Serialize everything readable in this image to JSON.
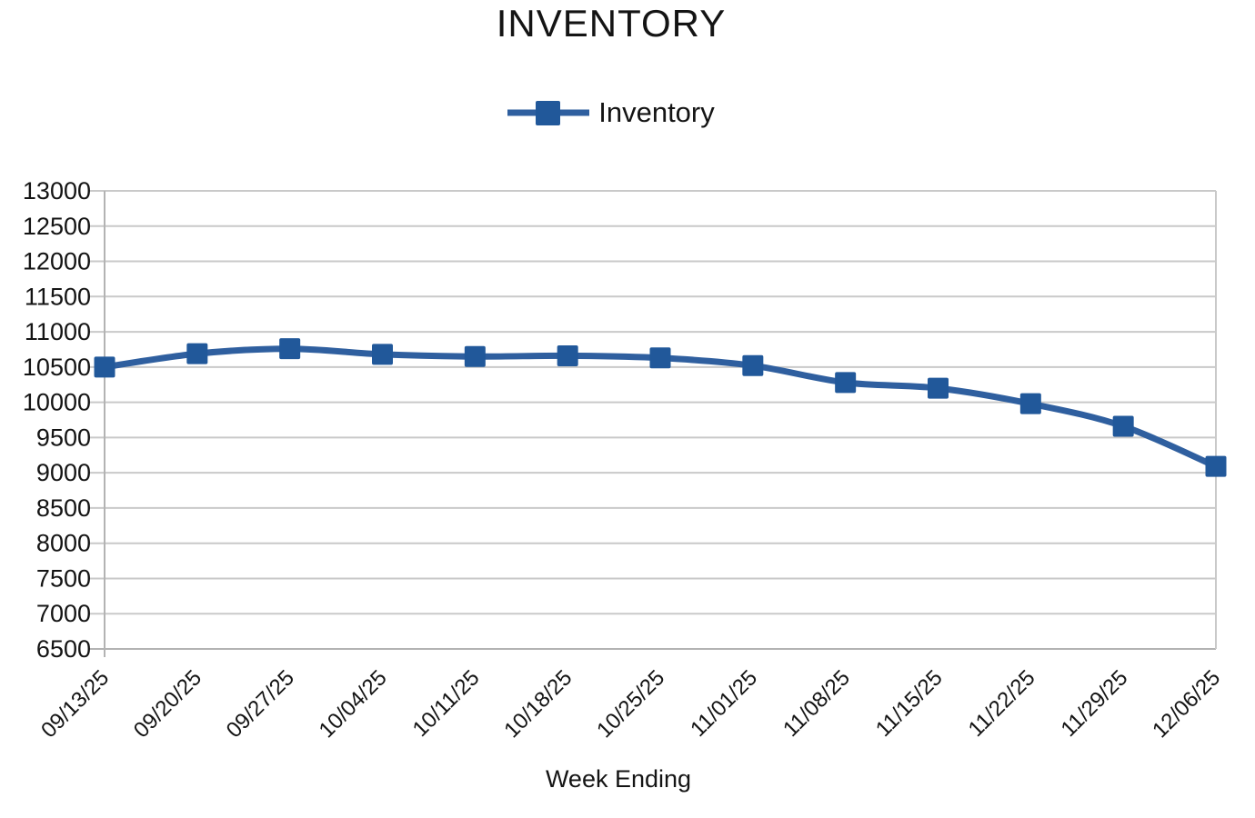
{
  "title": "INVENTORY",
  "legend": {
    "label": "Inventory"
  },
  "axes": {
    "x_title": "Week Ending"
  },
  "colors": {
    "line": "#2f5f9f",
    "marker": "#21589a",
    "grid": "#c9c9c9",
    "axis": "#b3b3b3",
    "text": "#141414"
  },
  "chart_data": {
    "type": "line",
    "title": "INVENTORY",
    "xlabel": "Week Ending",
    "ylabel": "",
    "legend_entries": [
      "Inventory"
    ],
    "legend_position": "top",
    "grid": true,
    "marker_shape": "square",
    "smooth": true,
    "categories": [
      "09/13/25",
      "09/20/25",
      "09/27/25",
      "10/04/25",
      "10/11/25",
      "10/18/25",
      "10/25/25",
      "11/01/25",
      "11/08/25",
      "11/15/25",
      "11/22/25",
      "11/29/25",
      "12/06/25"
    ],
    "series": [
      {
        "name": "Inventory",
        "values": [
          10500,
          10690,
          10760,
          10680,
          10650,
          10660,
          10630,
          10520,
          10280,
          10200,
          9980,
          9660,
          9090
        ]
      }
    ],
    "ylim": [
      6500,
      13000
    ],
    "ytick_step": 500,
    "yticks": [
      6500,
      7000,
      7500,
      8000,
      8500,
      9000,
      9500,
      10000,
      10500,
      11000,
      11500,
      12000,
      12500,
      13000
    ]
  }
}
